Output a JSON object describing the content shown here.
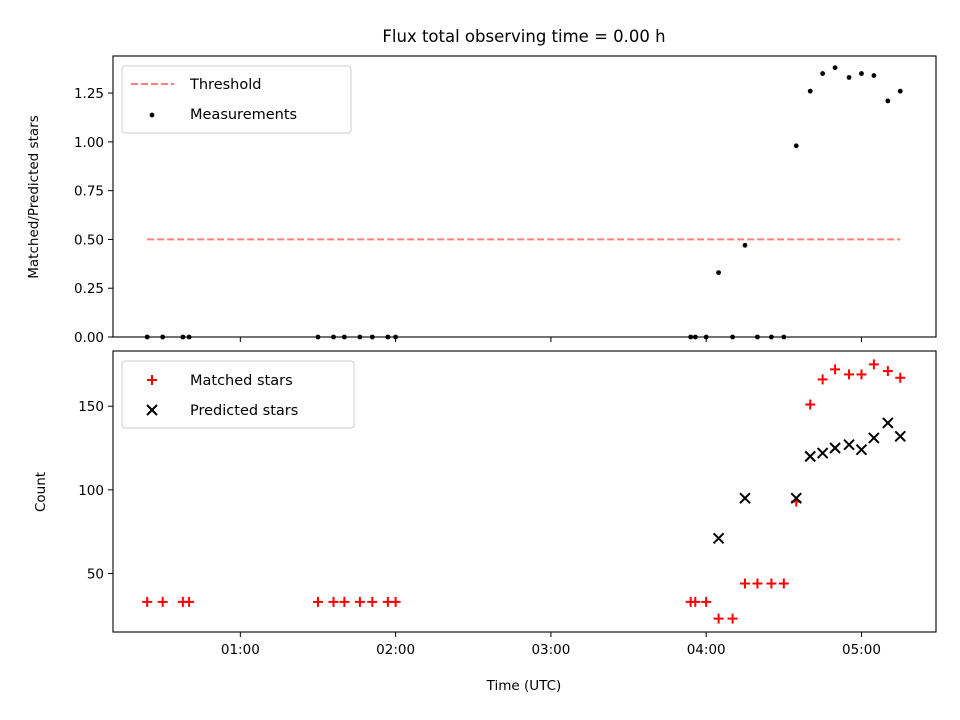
{
  "chart_data": [
    {
      "type": "scatter",
      "panel": "top",
      "title": "Flux total observing time = 0.00 h",
      "xlabel": "",
      "ylabel": "Matched/Predicted stars",
      "x_unit": "hours UTC",
      "xlim": [
        0.18,
        5.48
      ],
      "ylim": [
        0,
        1.44
      ],
      "yticks": [
        0.0,
        0.25,
        0.5,
        0.75,
        1.0,
        1.25
      ],
      "ytick_labels": [
        "0.00",
        "0.25",
        "0.50",
        "0.75",
        "1.00",
        "1.25"
      ],
      "grid": false,
      "legend_position": "top-left",
      "series": [
        {
          "name": "Threshold",
          "kind": "dashed-line",
          "color": "#ff7f7f",
          "x": [
            0.4,
            5.25
          ],
          "y": [
            0.5,
            0.5
          ]
        },
        {
          "name": "Measurements",
          "kind": "dot",
          "color": "#000000",
          "x": [
            0.4,
            0.5,
            0.63,
            0.67,
            1.5,
            1.6,
            1.67,
            1.77,
            1.85,
            1.95,
            2.0,
            3.9,
            3.93,
            4.0,
            4.08,
            4.17,
            4.25,
            4.33,
            4.42,
            4.5,
            4.58,
            4.67,
            4.75,
            4.83,
            4.92,
            5.0,
            5.08,
            5.17,
            5.25
          ],
          "y": [
            0,
            0,
            0,
            0,
            0,
            0,
            0,
            0,
            0,
            0,
            0,
            0,
            0,
            0,
            0.33,
            0,
            0.47,
            0,
            0,
            0,
            0.98,
            1.26,
            1.35,
            1.38,
            1.33,
            1.35,
            1.34,
            1.21,
            1.26
          ]
        }
      ]
    },
    {
      "type": "scatter",
      "panel": "bottom",
      "title": "",
      "xlabel": "Time (UTC)",
      "ylabel": "Count",
      "x_unit": "hours UTC",
      "xlim": [
        0.18,
        5.48
      ],
      "ylim": [
        15,
        183
      ],
      "xticks": [
        1,
        2,
        3,
        4,
        5
      ],
      "xtick_labels": [
        "01:00",
        "02:00",
        "03:00",
        "04:00",
        "05:00"
      ],
      "yticks": [
        50,
        100,
        150
      ],
      "ytick_labels": [
        "50",
        "100",
        "150"
      ],
      "grid": false,
      "legend_position": "top-left",
      "series": [
        {
          "name": "Matched stars",
          "kind": "plus",
          "color": "#ff0000",
          "x": [
            0.4,
            0.5,
            0.63,
            0.67,
            1.5,
            1.6,
            1.67,
            1.77,
            1.85,
            1.95,
            2.0,
            3.9,
            3.93,
            4.0,
            4.08,
            4.17,
            4.25,
            4.33,
            4.42,
            4.5,
            4.58,
            4.67,
            4.75,
            4.83,
            4.92,
            5.0,
            5.08,
            5.17,
            5.25
          ],
          "y": [
            33,
            33,
            33,
            33,
            33,
            33,
            33,
            33,
            33,
            33,
            33,
            33,
            33,
            33,
            23,
            23,
            44,
            44,
            44,
            44,
            93,
            151,
            166,
            172,
            169,
            169,
            175,
            171,
            167
          ]
        },
        {
          "name": "Predicted stars",
          "kind": "x",
          "color": "#000000",
          "x": [
            4.08,
            4.25,
            4.58,
            4.67,
            4.75,
            4.83,
            4.92,
            5.0,
            5.08,
            5.17,
            5.25
          ],
          "y": [
            71,
            95,
            95,
            120,
            122,
            125,
            127,
            124,
            131,
            140,
            132
          ]
        }
      ]
    }
  ]
}
